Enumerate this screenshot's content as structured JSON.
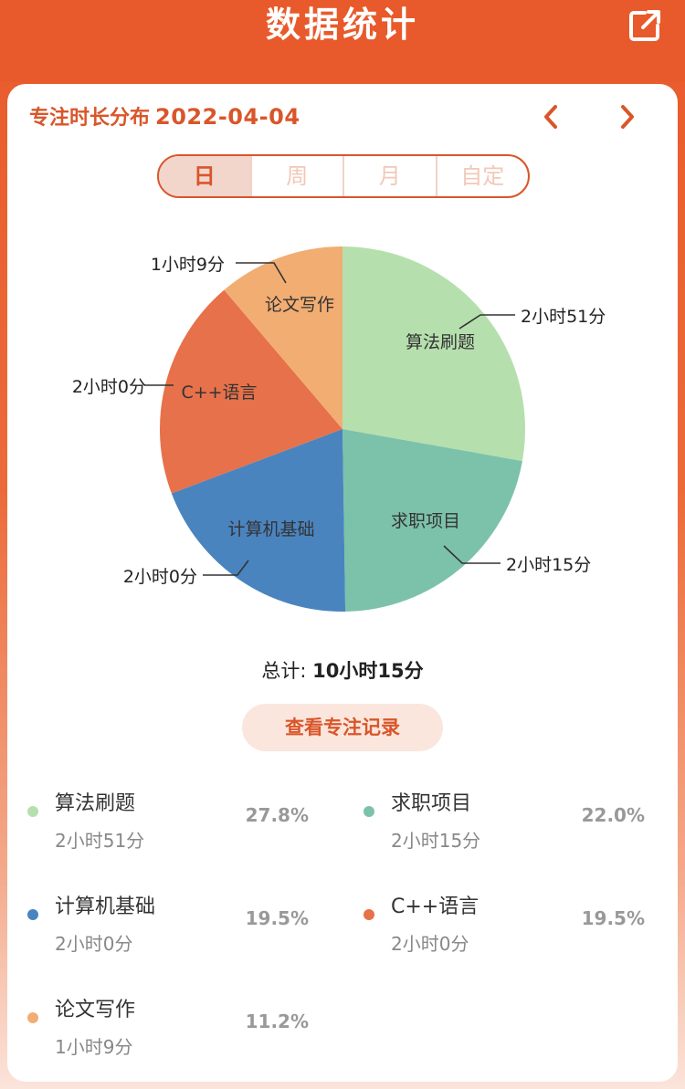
{
  "header": {
    "title": "数据统计",
    "share_icon": "share-icon"
  },
  "card": {
    "title_prefix": "专注时长分布",
    "date": "2022-04-04",
    "prev_icon": "chevron-left-icon",
    "next_icon": "chevron-right-icon"
  },
  "tabs": [
    {
      "label": "日",
      "active": true
    },
    {
      "label": "周",
      "active": false
    },
    {
      "label": "月",
      "active": false
    },
    {
      "label": "自定",
      "active": false
    }
  ],
  "chart_data": {
    "type": "pie",
    "categories": [
      "算法刷题",
      "求职项目",
      "计算机基础",
      "C++语言",
      "论文写作"
    ],
    "values": [
      171,
      135,
      120,
      120,
      69
    ],
    "value_labels": [
      "2小时51分",
      "2小时15分",
      "2小时0分",
      "2小时0分",
      "1小时9分"
    ],
    "percents": [
      "27.8%",
      "22.0%",
      "19.5%",
      "19.5%",
      "11.2%"
    ],
    "colors": [
      "#b6dfae",
      "#7cc2aa",
      "#4a84bf",
      "#e6714a",
      "#f2ad72"
    ]
  },
  "total": {
    "label": "总计:",
    "value": "10小时15分"
  },
  "record_button": {
    "label": "查看专注记录"
  }
}
